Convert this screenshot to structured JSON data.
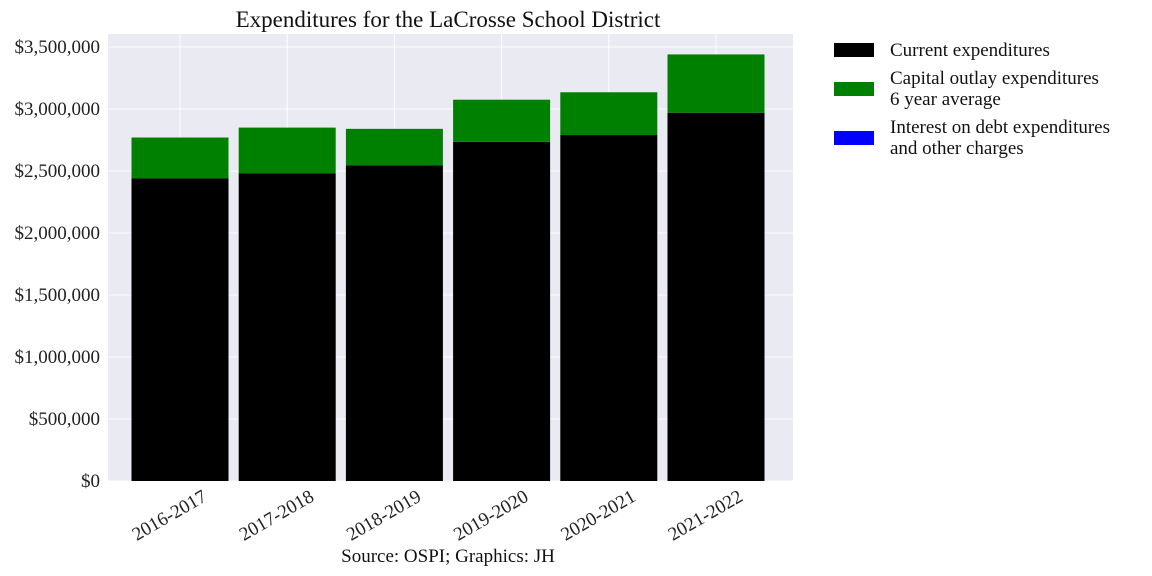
{
  "chart_data": {
    "type": "bar",
    "stacked": true,
    "title": "Expenditures for the LaCrosse School District",
    "caption": "Source: OSPI; Graphics: JH",
    "categories": [
      "2016-2017",
      "2017-2018",
      "2018-2019",
      "2019-2020",
      "2020-2021",
      "2021-2022"
    ],
    "series": [
      {
        "name": "Current expenditures",
        "color": "#000000",
        "values": [
          2440000,
          2480000,
          2545000,
          2735000,
          2790000,
          2970000
        ]
      },
      {
        "name": "Capital outlay expenditures\n6 year average",
        "color": "#008000",
        "values": [
          330000,
          370000,
          295000,
          340000,
          345000,
          470000
        ]
      },
      {
        "name": "Interest on debt expenditures\nand other charges",
        "color": "#0000ff",
        "values": [
          0,
          0,
          0,
          0,
          0,
          0
        ]
      }
    ],
    "yticks": [
      "$0",
      "$500,000",
      "$1,000,000",
      "$1,500,000",
      "$2,000,000",
      "$2,500,000",
      "$3,000,000",
      "$3,500,000"
    ],
    "ylim": [
      0,
      3500000
    ],
    "grid": true,
    "legend": "right-outside-top",
    "colors": {
      "plot_bg": "#EAEAF2",
      "grid": "#ffffff"
    }
  }
}
